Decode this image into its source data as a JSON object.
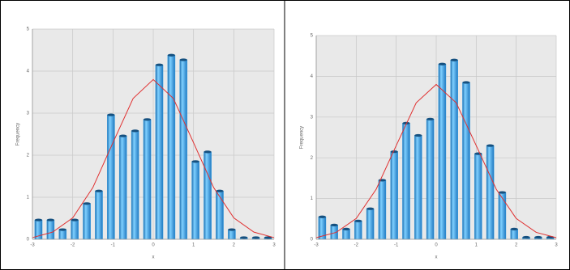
{
  "chart_data": [
    {
      "type": "histogram",
      "ylabel": "Frequency",
      "xlabel": "x",
      "bins": [
        -3,
        -2.7,
        -2.4,
        -2.1,
        -1.8,
        -1.5,
        -1.2,
        -0.9,
        -0.6,
        -0.3,
        0,
        0.3,
        0.6,
        0.9,
        1.2,
        1.5,
        1.8,
        2.1,
        2.4,
        2.7,
        3
      ],
      "counts": [
        0.46,
        0.46,
        0.23,
        0.46,
        0.85,
        1.15,
        2.96,
        2.46,
        2.58,
        2.85,
        4.15,
        4.38,
        4.27,
        1.85,
        2.08,
        1.15,
        0.23,
        0.04,
        0.04,
        0.04
      ],
      "color": "#3aa6e8",
      "fit": {
        "color": "#e03030",
        "x": [
          -3,
          -2.5,
          -2,
          -1.5,
          -1,
          -0.5,
          0,
          0.5,
          1,
          1.5,
          2,
          2.5,
          3
        ],
        "values": [
          0.04,
          0.17,
          0.51,
          1.23,
          2.3,
          3.35,
          3.8,
          3.35,
          2.3,
          1.23,
          0.51,
          0.17,
          0.04
        ]
      },
      "xlim": [
        -3,
        3
      ],
      "xticks": [
        -3,
        -2,
        -1,
        0,
        1,
        2,
        3
      ],
      "ylim": [
        0,
        5
      ],
      "yticks": [
        0,
        1,
        2,
        3,
        4,
        5
      ],
      "grid": true
    },
    {
      "type": "histogram",
      "ylabel": "Frequency",
      "xlabel": "x",
      "bins": [
        -3,
        -2.7,
        -2.4,
        -2.1,
        -1.8,
        -1.5,
        -1.2,
        -0.9,
        -0.6,
        -0.3,
        0,
        0.3,
        0.6,
        0.9,
        1.2,
        1.5,
        1.8,
        2.1,
        2.4,
        2.7,
        3
      ],
      "counts": [
        0.55,
        0.35,
        0.25,
        0.45,
        0.75,
        1.45,
        2.15,
        2.85,
        2.55,
        2.95,
        4.3,
        4.4,
        3.85,
        2.1,
        2.3,
        1.15,
        0.25,
        0.05,
        0.05,
        0.05
      ],
      "color": "#3aa6e8",
      "fit": {
        "color": "#e03030",
        "x": [
          -3,
          -2.5,
          -2,
          -1.5,
          -1,
          -0.5,
          0,
          0.5,
          1,
          1.5,
          2,
          2.5,
          3
        ],
        "values": [
          0.04,
          0.17,
          0.51,
          1.23,
          2.3,
          3.35,
          3.8,
          3.35,
          2.3,
          1.23,
          0.51,
          0.17,
          0.04
        ]
      },
      "xlim": [
        -3,
        3
      ],
      "xticks": [
        -3,
        -2,
        -1,
        0,
        1,
        2,
        3
      ],
      "ylim": [
        0,
        5
      ],
      "yticks": [
        0,
        1,
        2,
        3,
        4,
        5
      ],
      "grid": true
    }
  ]
}
